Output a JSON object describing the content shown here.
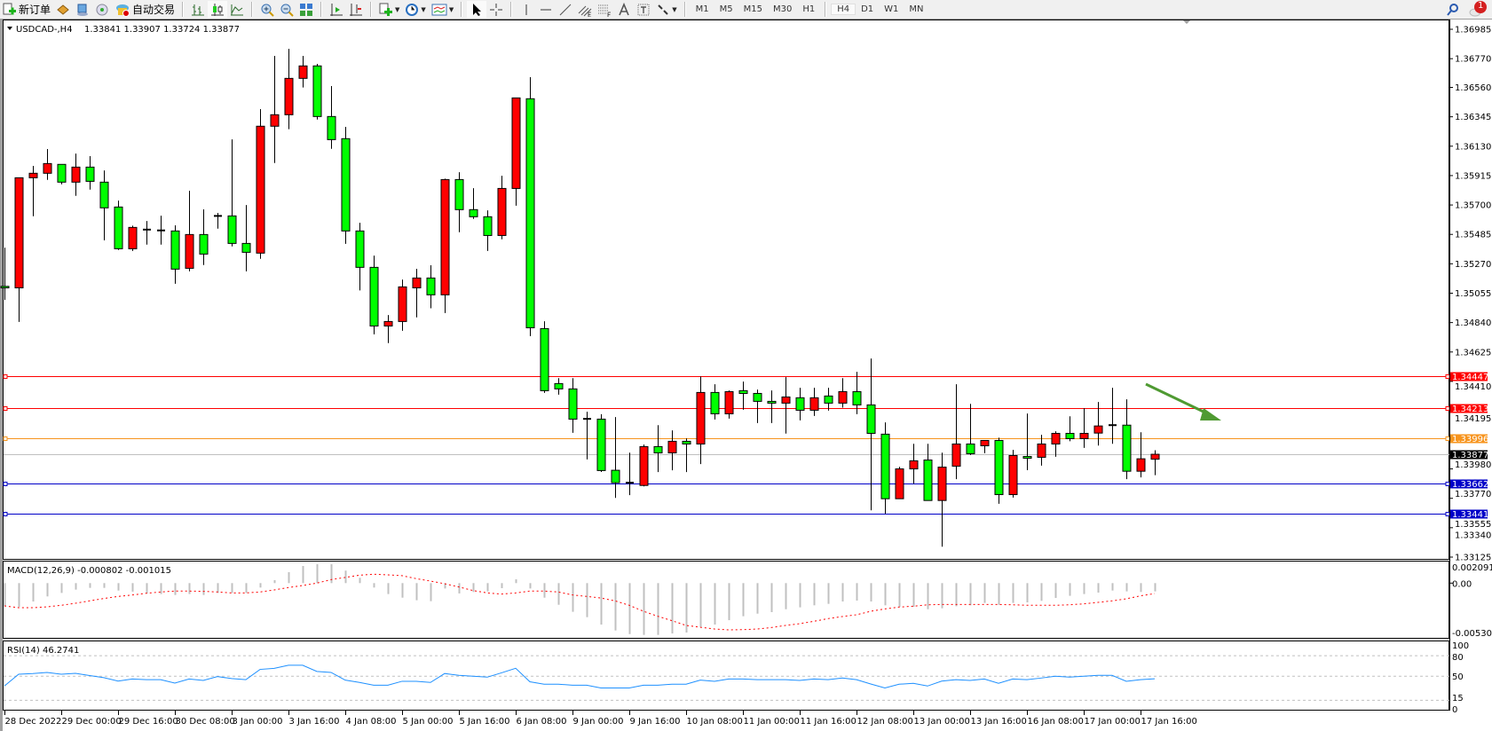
{
  "toolbar": {
    "new_order_label": "新订单",
    "auto_trading_label": "自动交易",
    "timeframes": [
      "M1",
      "M5",
      "M15",
      "M30",
      "H1",
      "H4",
      "D1",
      "W1",
      "MN"
    ],
    "active_timeframe": "H4",
    "notification_count": "1"
  },
  "chart": {
    "symbol_header": "USDCAD-,H4",
    "ohlc_header": "1.33841 1.33907 1.33724 1.33877",
    "colors": {
      "bull": "#ff0000",
      "bear": "#00ff00",
      "outline": "#000000",
      "bid_line": "#c0c0c0",
      "arrow": "#4f9a32"
    },
    "price_axis": [
      "1.36985",
      "1.36770",
      "1.36560",
      "1.36345",
      "1.36130",
      "1.35915",
      "1.35700",
      "1.35485",
      "1.35270",
      "1.35055",
      "1.34840",
      "1.34625",
      "1.34410",
      "1.34195",
      "1.33980",
      "1.33770",
      "1.33555",
      "1.33340",
      "1.33125"
    ],
    "levels": [
      {
        "price": "1.34447",
        "color": "#ff0000",
        "tag_text": "#ffffff"
      },
      {
        "price": "1.34213",
        "color": "#ff0000",
        "tag_text": "#ffffff"
      },
      {
        "price": "1.33996",
        "color": "#f7941d",
        "tag_text": "#ffffff"
      },
      {
        "price": "1.33877",
        "color": "#c0c0c0",
        "tag_bg": "#000000",
        "tag_text": "#ffffff"
      },
      {
        "price": "1.33662",
        "color": "#0000c8",
        "tag_text": "#ffffff"
      },
      {
        "price": "1.33441",
        "color": "#0000c8",
        "tag_text": "#ffffff"
      }
    ],
    "candles": [
      [
        1.35105,
        1.35388,
        1.35006,
        1.35094
      ],
      [
        1.35094,
        1.35899,
        1.34845,
        1.35899
      ],
      [
        1.35899,
        1.35986,
        1.35618,
        1.35932
      ],
      [
        1.35932,
        1.36109,
        1.35884,
        1.36003
      ],
      [
        1.35997,
        1.35997,
        1.35851,
        1.35867
      ],
      [
        1.35867,
        1.36076,
        1.35767,
        1.35977
      ],
      [
        1.35977,
        1.36057,
        1.35812,
        1.35873
      ],
      [
        1.35867,
        1.35953,
        1.35442,
        1.35679
      ],
      [
        1.35685,
        1.35732,
        1.35371,
        1.3538
      ],
      [
        1.3538,
        1.35549,
        1.35364,
        1.35536
      ],
      [
        1.35518,
        1.35583,
        1.3541,
        1.3552
      ],
      [
        1.35514,
        1.35622,
        1.3541,
        1.35512
      ],
      [
        1.3551,
        1.35551,
        1.35124,
        1.35231
      ],
      [
        1.35237,
        1.35804,
        1.35215,
        1.35484
      ],
      [
        1.35484,
        1.35668,
        1.35261,
        1.35341
      ],
      [
        1.35616,
        1.35642,
        1.35527,
        1.3562
      ],
      [
        1.3562,
        1.3618,
        1.35397,
        1.35419
      ],
      [
        1.35419,
        1.357,
        1.35215,
        1.35354
      ],
      [
        1.35348,
        1.36401,
        1.35306,
        1.36276
      ],
      [
        1.36276,
        1.3679,
        1.36007,
        1.3636
      ],
      [
        1.3636,
        1.36842,
        1.36254,
        1.36626
      ],
      [
        1.36626,
        1.3679,
        1.36559,
        1.36717
      ],
      [
        1.36717,
        1.36732,
        1.36325,
        1.36347
      ],
      [
        1.36347,
        1.3657,
        1.36111,
        1.36178
      ],
      [
        1.36185,
        1.36271,
        1.35416,
        1.3551
      ],
      [
        1.3551,
        1.3557,
        1.35075,
        1.35244
      ],
      [
        1.35244,
        1.3533,
        1.34754,
        1.34815
      ],
      [
        1.34815,
        1.34895,
        1.3469,
        1.34848
      ],
      [
        1.34848,
        1.35155,
        1.3478,
        1.35101
      ],
      [
        1.35094,
        1.35233,
        1.34878,
        1.35166
      ],
      [
        1.35166,
        1.35259,
        1.34945,
        1.35043
      ],
      [
        1.35043,
        1.35893,
        1.3491,
        1.35886
      ],
      [
        1.35886,
        1.3594,
        1.35501,
        1.35666
      ],
      [
        1.35666,
        1.35823,
        1.35598,
        1.35614
      ],
      [
        1.35614,
        1.35661,
        1.35364,
        1.35477
      ],
      [
        1.35477,
        1.35914,
        1.35449,
        1.35821
      ],
      [
        1.35821,
        1.36483,
        1.35695,
        1.36483
      ],
      [
        1.36477,
        1.36635,
        1.34741,
        1.34802
      ],
      [
        1.34796,
        1.3485,
        1.34326,
        1.34342
      ],
      [
        1.34394,
        1.34434,
        1.34313,
        1.34355
      ],
      [
        1.34355,
        1.34434,
        1.34034,
        1.34134
      ],
      [
        1.34136,
        1.34188,
        1.33839,
        1.34134
      ],
      [
        1.34134,
        1.3417,
        1.33748,
        1.33758
      ],
      [
        1.3376,
        1.34149,
        1.33558,
        1.33669
      ],
      [
        1.33667,
        1.33889,
        1.33578,
        1.33669
      ],
      [
        1.33649,
        1.33948,
        1.33642,
        1.33933
      ],
      [
        1.33933,
        1.3409,
        1.33747,
        1.33887
      ],
      [
        1.33887,
        1.34052,
        1.3376,
        1.33972
      ],
      [
        1.33972,
        1.33993,
        1.33747,
        1.33952
      ],
      [
        1.33952,
        1.34446,
        1.33805,
        1.34329
      ],
      [
        1.34329,
        1.34389,
        1.34131,
        1.34173
      ],
      [
        1.34173,
        1.34344,
        1.34138,
        1.34335
      ],
      [
        1.34342,
        1.34409,
        1.34203,
        1.34322
      ],
      [
        1.34322,
        1.3435,
        1.34105,
        1.34264
      ],
      [
        1.34264,
        1.34344,
        1.34105,
        1.34251
      ],
      [
        1.34251,
        1.34441,
        1.34028,
        1.34296
      ],
      [
        1.3429,
        1.34363,
        1.34125,
        1.34199
      ],
      [
        1.34199,
        1.34363,
        1.34157,
        1.3429
      ],
      [
        1.34303,
        1.34363,
        1.34196,
        1.34251
      ],
      [
        1.34251,
        1.34434,
        1.34218,
        1.34335
      ],
      [
        1.34335,
        1.3448,
        1.3417,
        1.34238
      ],
      [
        1.34238,
        1.34577,
        1.33467,
        1.3403
      ],
      [
        1.34024,
        1.3411,
        1.33442,
        1.33552
      ],
      [
        1.33552,
        1.33785,
        1.33552,
        1.3377
      ],
      [
        1.3377,
        1.33954,
        1.33662,
        1.33829
      ],
      [
        1.33835,
        1.33954,
        1.33539,
        1.33539
      ],
      [
        1.33539,
        1.33889,
        1.33201,
        1.33783
      ],
      [
        1.3379,
        1.34389,
        1.33695,
        1.33952
      ],
      [
        1.33952,
        1.34246,
        1.33872,
        1.33881
      ],
      [
        1.33939,
        1.33978,
        1.33885,
        1.33978
      ],
      [
        1.33978,
        1.33998,
        1.33515,
        1.33582
      ],
      [
        1.33582,
        1.33909,
        1.3356,
        1.33868
      ],
      [
        1.33861,
        1.34175,
        1.33761,
        1.33848
      ],
      [
        1.33855,
        1.34019,
        1.33794,
        1.33952
      ],
      [
        1.33952,
        1.34045,
        1.33859,
        1.3403
      ],
      [
        1.3403,
        1.34155,
        1.33972,
        1.33991
      ],
      [
        1.33991,
        1.34214,
        1.33924,
        1.3403
      ],
      [
        1.34032,
        1.34259,
        1.33941,
        1.34084
      ],
      [
        1.34088,
        1.34363,
        1.33954,
        1.3409
      ],
      [
        1.3409,
        1.34279,
        1.33695,
        1.33753
      ],
      [
        1.33753,
        1.34038,
        1.33708,
        1.33844
      ],
      [
        1.33841,
        1.33907,
        1.33724,
        1.33877
      ]
    ],
    "time_axis": [
      "28 Dec 2022",
      "29 Dec 00:00",
      "29 Dec 16:00",
      "30 Dec 08:00",
      "3 Jan 00:00",
      "3 Jan 16:00",
      "4 Jan 08:00",
      "5 Jan 00:00",
      "5 Jan 16:00",
      "6 Jan 08:00",
      "9 Jan 00:00",
      "9 Jan 16:00",
      "10 Jan 08:00",
      "11 Jan 00:00",
      "11 Jan 16:00",
      "12 Jan 08:00",
      "13 Jan 00:00",
      "13 Jan 16:00",
      "16 Jan 08:00",
      "17 Jan 00:00",
      "17 Jan 16:00"
    ]
  },
  "macd": {
    "label": "MACD(12,26,9) -0.000802 -0.001015",
    "axis": [
      "0.002091",
      "0.00",
      "-0.005303"
    ],
    "histogram_color": "#c0c0c0",
    "signal_color": "#ff0000",
    "histogram": [
      -0.00225,
      -0.0023,
      -0.00178,
      -0.00129,
      -0.00095,
      -0.00063,
      -0.00046,
      -0.00046,
      -0.00072,
      -0.00083,
      -0.001,
      -0.00106,
      -0.00115,
      -0.00106,
      -0.00115,
      -0.00095,
      -0.00095,
      -0.00095,
      -0.00043,
      0.00029,
      0.00106,
      0.00166,
      0.00184,
      0.00184,
      0.00121,
      0.00052,
      -0.00043,
      -0.00106,
      -0.00141,
      -0.00166,
      -0.00175,
      -0.00052,
      -0.001,
      -0.00086,
      -0.0008,
      -0.00049,
      0.00037,
      -0.00052,
      -0.00141,
      -0.0021,
      -0.00278,
      -0.0033,
      -0.00402,
      -0.00459,
      -0.00494,
      -0.00502,
      -0.00502,
      -0.00488,
      -0.00479,
      -0.00425,
      -0.00402,
      -0.00359,
      -0.00321,
      -0.00296,
      -0.00281,
      -0.00253,
      -0.00235,
      -0.00215,
      -0.00201,
      -0.00178,
      -0.00169,
      -0.00178,
      -0.00215,
      -0.0023,
      -0.0023,
      -0.00253,
      -0.00244,
      -0.00224,
      -0.00215,
      -0.00192,
      -0.0021,
      -0.00192,
      -0.00187,
      -0.00172,
      -0.00144,
      -0.00123,
      -0.00106,
      -0.00092,
      -0.00072,
      -0.0008,
      -0.00086,
      -0.000802
    ],
    "signal": [
      -0.00221,
      -0.00238,
      -0.00238,
      -0.0023,
      -0.00215,
      -0.00195,
      -0.00172,
      -0.00149,
      -0.00129,
      -0.00115,
      -0.00098,
      -0.00086,
      -0.00077,
      -0.00077,
      -0.0008,
      -0.00086,
      -0.00095,
      -0.00095,
      -0.00086,
      -0.00066,
      -0.00043,
      -0.00023,
      0.0,
      0.00034,
      0.00055,
      0.00077,
      0.00086,
      0.0008,
      0.00072,
      0.00043,
      0.0002,
      -6e-05,
      -0.00037,
      -0.00072,
      -0.00095,
      -0.00106,
      -0.00095,
      -0.00077,
      -0.00077,
      -0.00086,
      -0.00115,
      -0.00129,
      -0.00144,
      -0.00172,
      -0.00215,
      -0.00273,
      -0.00321,
      -0.00364,
      -0.0041,
      -0.00428,
      -0.00445,
      -0.00453,
      -0.00451,
      -0.00445,
      -0.00431,
      -0.0041,
      -0.00393,
      -0.0037,
      -0.00344,
      -0.00324,
      -0.00307,
      -0.00273,
      -0.0025,
      -0.00232,
      -0.00224,
      -0.0021,
      -0.00207,
      -0.00207,
      -0.00207,
      -0.00207,
      -0.00207,
      -0.0021,
      -0.00215,
      -0.00215,
      -0.00215,
      -0.0021,
      -0.00201,
      -0.00187,
      -0.00172,
      -0.00152,
      -0.00123,
      -0.001015
    ]
  },
  "rsi": {
    "label": "RSI(14) 46.2741",
    "axis": [
      "100",
      "80",
      "50",
      "15",
      "0"
    ],
    "line_color": "#1e90ff",
    "values": [
      35.8,
      53,
      54,
      55.6,
      53,
      54.3,
      51,
      48,
      43,
      46,
      45,
      45,
      40,
      46,
      44,
      49.6,
      46.6,
      45,
      60,
      61.6,
      66,
      66,
      57,
      55.6,
      44.4,
      41,
      37,
      37,
      42.7,
      42.7,
      41,
      54,
      51.3,
      50,
      48.7,
      55,
      61.6,
      42,
      38.4,
      38.4,
      37,
      37,
      33,
      33,
      33,
      37,
      37,
      38.4,
      38.4,
      44.4,
      42.7,
      46,
      46,
      45,
      45,
      45,
      44,
      46,
      45,
      47.4,
      45,
      38.8,
      33,
      38.4,
      39.7,
      35.8,
      43,
      45,
      44,
      46,
      39.7,
      46,
      45,
      47.4,
      50,
      48.7,
      50,
      51.3,
      51.3,
      42.7,
      45,
      46.2741
    ]
  }
}
